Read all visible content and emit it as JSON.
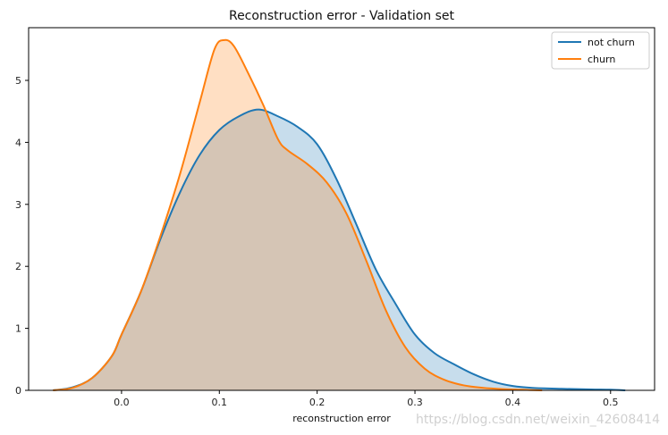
{
  "chart_data": {
    "type": "area",
    "title": "Reconstruction error - Validation set",
    "xlabel": "reconstruction error",
    "ylabel": "",
    "xlim": [
      -0.095,
      0.545
    ],
    "ylim": [
      0,
      5.85
    ],
    "x_ticks": [
      "0.0",
      "0.1",
      "0.2",
      "0.3",
      "0.4",
      "0.5"
    ],
    "y_ticks": [
      "0",
      "1",
      "2",
      "3",
      "4",
      "5"
    ],
    "grid": false,
    "legend": "top-right",
    "watermark": "https://blog.csdn.net/weixin_42608414",
    "series": [
      {
        "name": "not churn",
        "color": "#1f77b4",
        "points": [
          [
            -0.07,
            0.0
          ],
          [
            -0.05,
            0.05
          ],
          [
            -0.03,
            0.2
          ],
          [
            -0.01,
            0.55
          ],
          [
            0.0,
            0.9
          ],
          [
            0.02,
            1.6
          ],
          [
            0.04,
            2.45
          ],
          [
            0.06,
            3.2
          ],
          [
            0.08,
            3.8
          ],
          [
            0.1,
            4.2
          ],
          [
            0.12,
            4.42
          ],
          [
            0.14,
            4.53
          ],
          [
            0.16,
            4.42
          ],
          [
            0.18,
            4.25
          ],
          [
            0.2,
            3.97
          ],
          [
            0.22,
            3.4
          ],
          [
            0.24,
            2.68
          ],
          [
            0.26,
            1.95
          ],
          [
            0.28,
            1.4
          ],
          [
            0.3,
            0.9
          ],
          [
            0.32,
            0.6
          ],
          [
            0.34,
            0.42
          ],
          [
            0.36,
            0.26
          ],
          [
            0.38,
            0.14
          ],
          [
            0.4,
            0.07
          ],
          [
            0.42,
            0.04
          ],
          [
            0.45,
            0.025
          ],
          [
            0.48,
            0.015
          ],
          [
            0.5,
            0.01
          ],
          [
            0.515,
            0.0
          ]
        ]
      },
      {
        "name": "churn",
        "color": "#ff7f0e",
        "points": [
          [
            -0.07,
            0.0
          ],
          [
            -0.05,
            0.04
          ],
          [
            -0.03,
            0.2
          ],
          [
            -0.01,
            0.55
          ],
          [
            0.0,
            0.9
          ],
          [
            0.02,
            1.6
          ],
          [
            0.04,
            2.5
          ],
          [
            0.06,
            3.5
          ],
          [
            0.08,
            4.65
          ],
          [
            0.095,
            5.5
          ],
          [
            0.105,
            5.65
          ],
          [
            0.115,
            5.55
          ],
          [
            0.13,
            5.1
          ],
          [
            0.145,
            4.6
          ],
          [
            0.16,
            4.05
          ],
          [
            0.17,
            3.87
          ],
          [
            0.19,
            3.65
          ],
          [
            0.21,
            3.35
          ],
          [
            0.23,
            2.85
          ],
          [
            0.25,
            2.1
          ],
          [
            0.27,
            1.3
          ],
          [
            0.29,
            0.7
          ],
          [
            0.31,
            0.35
          ],
          [
            0.33,
            0.17
          ],
          [
            0.35,
            0.08
          ],
          [
            0.37,
            0.04
          ],
          [
            0.39,
            0.02
          ],
          [
            0.41,
            0.01
          ],
          [
            0.43,
            0.0
          ]
        ]
      }
    ]
  }
}
